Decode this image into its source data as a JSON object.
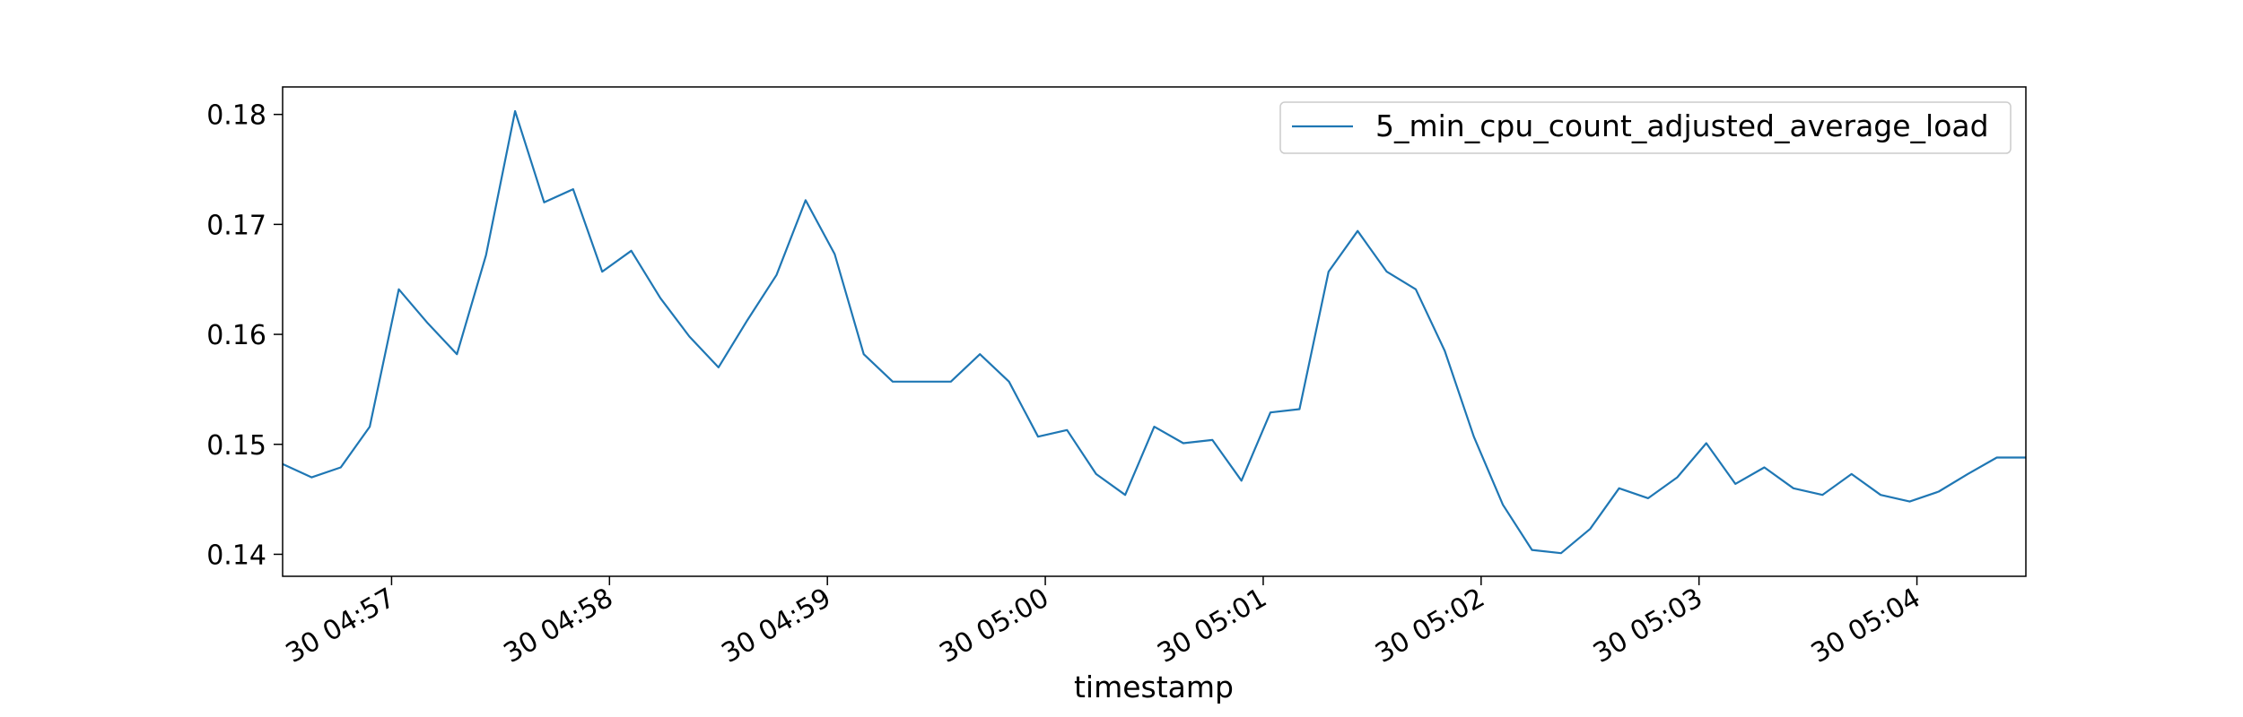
{
  "chart_data": {
    "type": "line",
    "title": "",
    "xlabel": "timestamp",
    "ylabel": "",
    "x_tick_labels": [
      "30 04:57",
      "30 04:58",
      "30 04:59",
      "30 05:00",
      "30 05:01",
      "30 05:02",
      "30 05:03",
      "30 05:04"
    ],
    "y_tick_labels": [
      "0.14",
      "0.15",
      "0.16",
      "0.17",
      "0.18"
    ],
    "y_ticks": [
      0.14,
      0.15,
      0.16,
      0.17,
      0.18
    ],
    "ylim": [
      0.138,
      0.1825
    ],
    "xlim": [
      "04:56:30",
      "05:04:30"
    ],
    "grid": false,
    "legend_position": "top-right",
    "color": "#1f77b4",
    "series": [
      {
        "name": "5_min_cpu_count_adjusted_average_load",
        "x": [
          "04:56:30",
          "04:56:38",
          "04:56:46",
          "04:56:54",
          "04:57:02",
          "04:57:10",
          "04:57:18",
          "04:57:26",
          "04:57:34",
          "04:57:42",
          "04:57:50",
          "04:57:58",
          "04:58:06",
          "04:58:14",
          "04:58:22",
          "04:58:30",
          "04:58:38",
          "04:58:46",
          "04:58:54",
          "04:59:02",
          "04:59:10",
          "04:59:18",
          "04:59:26",
          "04:59:34",
          "04:59:42",
          "04:59:50",
          "04:59:58",
          "05:00:06",
          "05:00:14",
          "05:00:22",
          "05:00:30",
          "05:00:38",
          "05:00:46",
          "05:00:54",
          "05:01:02",
          "05:01:10",
          "05:01:18",
          "05:01:26",
          "05:01:34",
          "05:01:42",
          "05:01:50",
          "05:01:58",
          "05:02:06",
          "05:02:14",
          "05:02:22",
          "05:02:30",
          "05:02:38",
          "05:02:46",
          "05:02:54",
          "05:03:02",
          "05:03:10",
          "05:03:18",
          "05:03:26",
          "05:03:34",
          "05:03:42",
          "05:03:50",
          "05:03:58",
          "05:04:06",
          "05:04:14",
          "05:04:22",
          "05:04:30"
        ],
        "values": [
          0.1482,
          0.147,
          0.1479,
          0.1516,
          0.1641,
          0.161,
          0.1582,
          0.1672,
          0.1803,
          0.172,
          0.1732,
          0.1657,
          0.1676,
          0.1633,
          0.1598,
          0.157,
          0.1613,
          0.1654,
          0.1722,
          0.1673,
          0.1582,
          0.1557,
          0.1557,
          0.1557,
          0.1582,
          0.1557,
          0.1507,
          0.1513,
          0.1473,
          0.1454,
          0.1516,
          0.1501,
          0.1504,
          0.1467,
          0.1529,
          0.1532,
          0.1657,
          0.1694,
          0.1657,
          0.1641,
          0.1585,
          0.1507,
          0.1445,
          0.1404,
          0.1401,
          0.1423,
          0.146,
          0.1451,
          0.147,
          0.1501,
          0.1464,
          0.1479,
          0.146,
          0.1454,
          0.1473,
          0.1454,
          0.1448,
          0.1457,
          0.1473,
          0.1488,
          0.1488
        ]
      }
    ]
  }
}
